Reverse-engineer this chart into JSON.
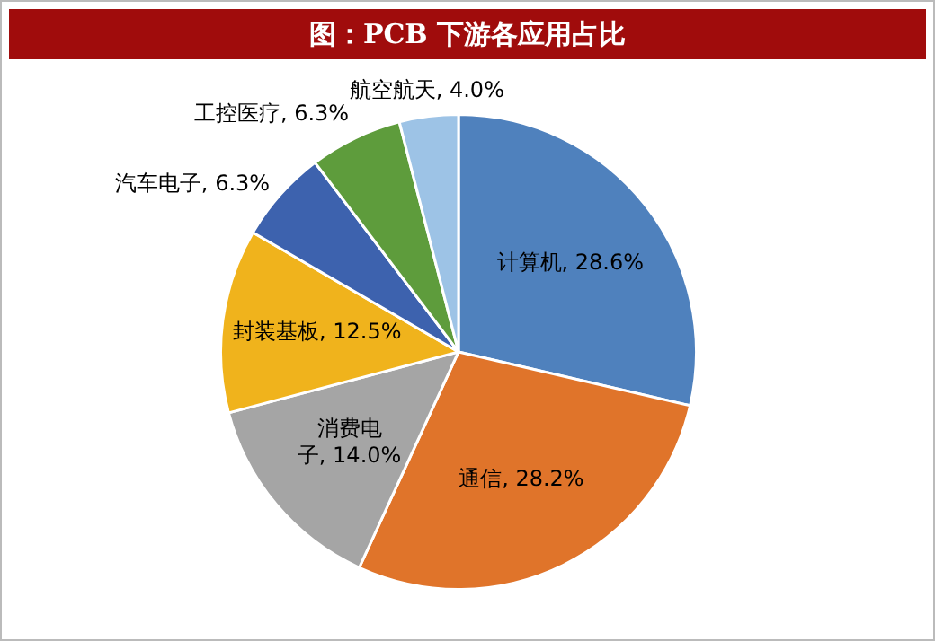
{
  "chart_data": {
    "type": "pie",
    "title": "图：PCB 下游各应用占比",
    "categories": [
      "计算机",
      "通信",
      "消费电子",
      "封装基板",
      "汽车电子",
      "工控医疗",
      "航空航天"
    ],
    "values": [
      28.6,
      28.2,
      14.0,
      12.5,
      6.3,
      6.3,
      4.0
    ],
    "value_labels": [
      "28.6%",
      "28.2%",
      "14.0%",
      "12.5%",
      "6.3%",
      "6.3%",
      "4.0%"
    ],
    "colors": [
      "#4f81bd",
      "#e0742a",
      "#a5a5a5",
      "#f0b31c",
      "#3d62ae",
      "#5e9c3c",
      "#9dc3e6"
    ],
    "legend": false
  }
}
